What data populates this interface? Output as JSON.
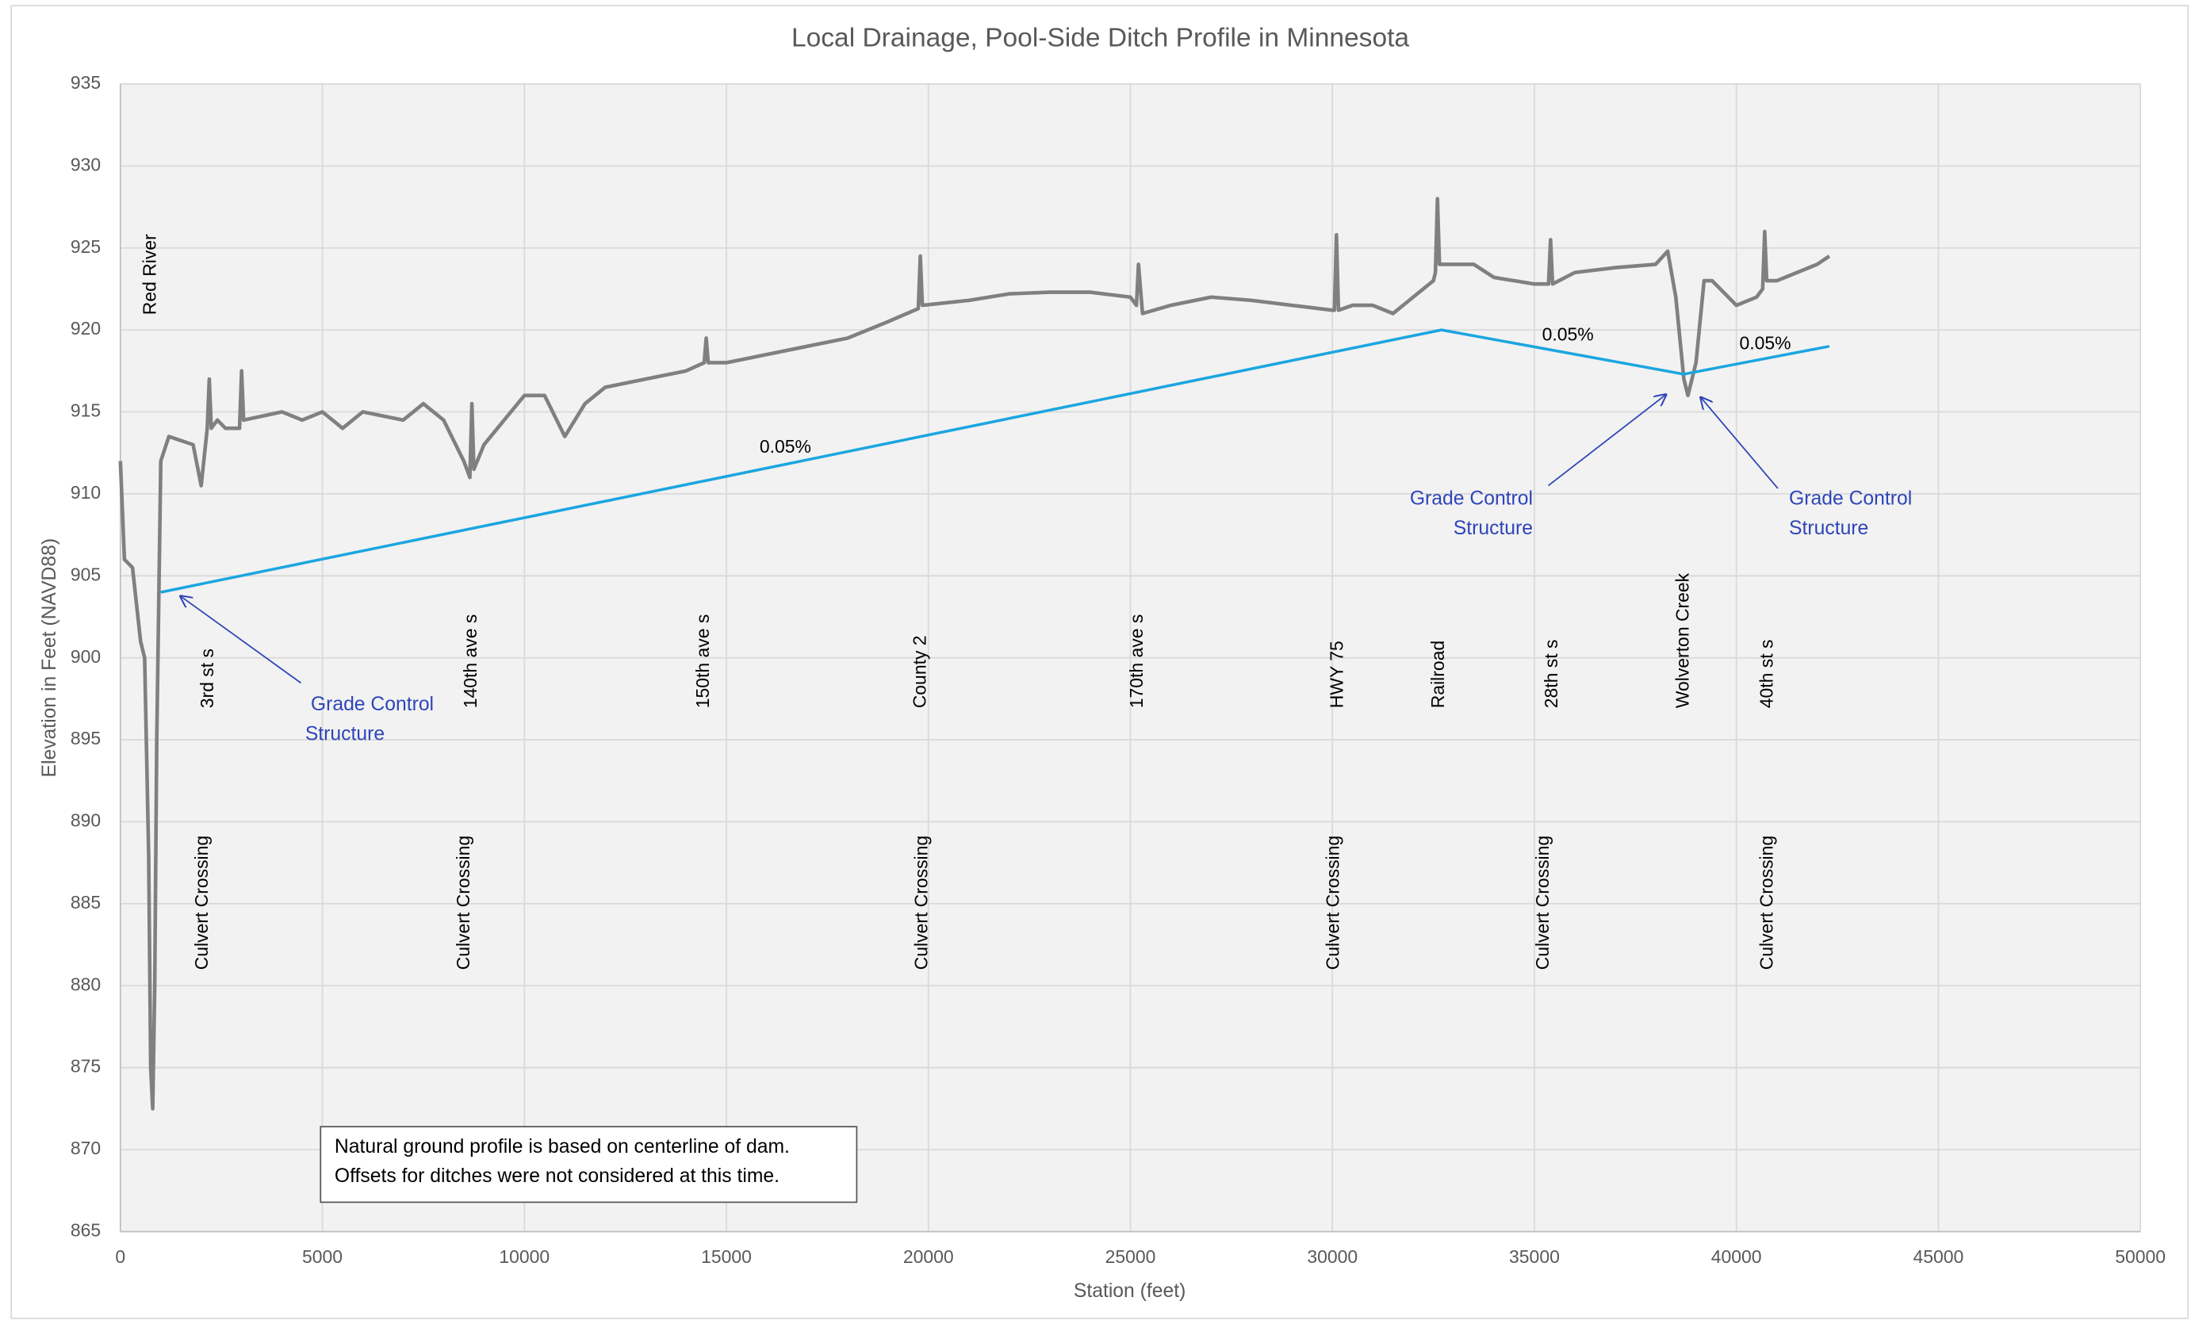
{
  "chart_data": {
    "type": "line",
    "title": "Local Drainage, Pool-Side Ditch Profile in Minnesota",
    "x_label": "Station (feet)",
    "y_label": "Elevation in Feet (NAVD88)",
    "xlim": [
      0,
      50000
    ],
    "ylim": [
      865,
      935
    ],
    "xticks": [
      0,
      5000,
      10000,
      15000,
      20000,
      25000,
      30000,
      35000,
      40000,
      45000,
      50000
    ],
    "yticks": [
      865,
      870,
      875,
      880,
      885,
      890,
      895,
      900,
      905,
      910,
      915,
      920,
      925,
      930,
      935
    ],
    "grid": true,
    "series": [
      {
        "color": "#808080",
        "x": [
          0,
          100,
          300,
          500,
          600,
          700,
          750,
          800,
          850,
          900,
          1000,
          1200,
          1800,
          2000,
          2150,
          2200,
          2250,
          2400,
          2600,
          2950,
          3000,
          3050,
          4000,
          4500,
          5000,
          5500,
          6000,
          7000,
          7500,
          8000,
          8500,
          8650,
          8700,
          8750,
          9000,
          9500,
          10000,
          10500,
          11000,
          11500,
          12000,
          13000,
          14000,
          14450,
          14500,
          14550,
          15000,
          16000,
          17000,
          18000,
          19000,
          19750,
          19800,
          19850,
          21000,
          22000,
          23000,
          24000,
          25000,
          25150,
          25200,
          25300,
          26000,
          27000,
          28000,
          29000,
          30000,
          30050,
          30100,
          30150,
          30500,
          31000,
          31500,
          32000,
          32500,
          32550,
          32600,
          32650,
          33000,
          33500,
          34000,
          35000,
          35350,
          35400,
          35450,
          36000,
          37000,
          38000,
          38300,
          38500,
          38700,
          38800,
          39000,
          39200,
          39400,
          40000,
          40500,
          40650,
          40700,
          40750,
          41000,
          42000,
          42300
        ],
        "values": [
          912,
          906,
          905.5,
          901,
          900,
          888,
          875,
          872.5,
          880,
          895,
          912,
          913.5,
          913,
          910.5,
          914,
          917,
          914,
          914.5,
          914,
          914,
          917.5,
          914.5,
          915,
          914.5,
          915,
          914,
          915,
          914.5,
          915.5,
          914.5,
          912,
          911,
          915.5,
          911.5,
          913,
          914.5,
          916,
          916,
          913.5,
          915.5,
          916.5,
          917,
          917.5,
          918,
          919.5,
          918,
          918,
          918.5,
          919,
          919.5,
          920.5,
          921.3,
          924.5,
          921.5,
          921.8,
          922.2,
          922.3,
          922.3,
          922,
          921.5,
          924,
          921,
          921.5,
          922,
          921.8,
          921.5,
          921.2,
          921.2,
          925.8,
          921.2,
          921.5,
          921.5,
          921,
          922,
          923,
          923.5,
          928,
          924,
          924,
          924,
          923.2,
          922.8,
          922.8,
          925.5,
          922.8,
          923.5,
          923.8,
          924,
          924.8,
          922,
          917,
          916,
          918,
          923,
          923,
          921.5,
          922,
          922.5,
          926,
          923,
          923,
          924,
          924.5
        ]
      },
      {
        "color": "#1ba6e0",
        "x": [
          1000,
          32700,
          38700,
          42300
        ],
        "values": [
          904,
          920,
          917.3,
          919
        ]
      }
    ],
    "river_label": "Red River",
    "road_labels": [
      "3rd st s",
      "140th ave s",
      "150th ave s",
      "County 2",
      "170th ave s",
      "HWY 75",
      "Railroad",
      "28th st s",
      "Wolverton Creek",
      "40th st s"
    ],
    "crossing_labels": [
      "Culvert Crossing",
      "Culvert Crossing",
      "Culvert Crossing",
      "Culvert Crossing",
      "Culvert Crossing",
      "Culvert Crossing"
    ],
    "slope_labels": [
      "0.05%",
      "0.05%",
      "0.05%"
    ],
    "grade_control_labels": [
      [
        "Grade Control",
        "Structure"
      ],
      [
        "Grade Control",
        "Structure"
      ],
      [
        "Grade Control",
        "Structure"
      ]
    ],
    "note": [
      "Natural ground  profile is based on centerline of dam.",
      "Offsets for ditches were not considered at this time."
    ]
  }
}
